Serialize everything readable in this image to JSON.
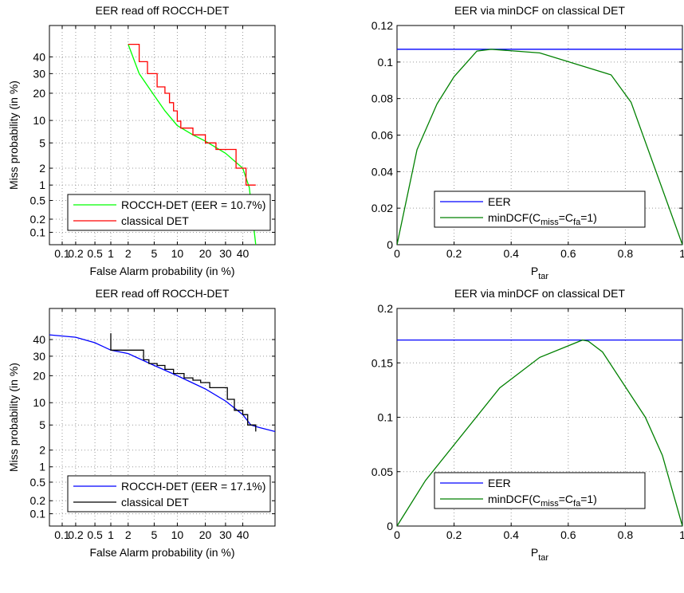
{
  "chart_data": [
    {
      "type": "line",
      "title": "EER read off ROCCH-DET",
      "xlabel": "False Alarm probability (in %)",
      "ylabel": "Miss probability (in %)",
      "scale": "probit",
      "xlim": [
        0.05,
        60
      ],
      "ylim": [
        0.05,
        60
      ],
      "grid": true,
      "legend_position": "bottom-left",
      "x_ticks": [
        "0.1",
        "0.2",
        "0.5",
        "1",
        "2",
        "5",
        "10",
        "20",
        "30",
        "40"
      ],
      "y_ticks": [
        "0.1",
        "0.2",
        "0.5",
        "1",
        "2",
        "5",
        "10",
        "20",
        "30",
        "40"
      ],
      "series": [
        {
          "name": "ROCCH-DET (EER = 10.7%)",
          "color": "#00ff00",
          "kind": "curve",
          "x": [
            2,
            3,
            5,
            7,
            10,
            15,
            20,
            30,
            40,
            44,
            48
          ],
          "y": [
            48,
            30,
            19,
            13,
            8.6,
            6.5,
            5.3,
            3.5,
            2.0,
            0.9,
            0.05
          ]
        },
        {
          "name": "classical DET",
          "color": "#ff0000",
          "kind": "step",
          "x": [
            2,
            3,
            3,
            4,
            4,
            5.5,
            5.5,
            7,
            7,
            8,
            8,
            9,
            9,
            10,
            10,
            11,
            11,
            15,
            15,
            20,
            20,
            25,
            25,
            36,
            36,
            42,
            42,
            48
          ],
          "y": [
            48,
            48,
            37,
            37,
            30,
            30,
            23,
            23,
            20,
            20,
            16,
            16,
            13,
            13,
            9.8,
            9.8,
            8.0,
            8.0,
            6.5,
            6.5,
            5.0,
            5.0,
            4.0,
            4.0,
            2.0,
            2.0,
            1.0,
            1.0
          ]
        }
      ]
    },
    {
      "type": "line",
      "title": "EER via minDCF on classical DET",
      "xlabel": "P",
      "xlabel_sub": "tar",
      "ylabel": "",
      "xlim": [
        0,
        1
      ],
      "ylim": [
        0,
        0.12
      ],
      "grid": true,
      "legend_position": "bottom-center",
      "x_ticks": [
        "0",
        "0.2",
        "0.4",
        "0.6",
        "0.8",
        "1"
      ],
      "y_ticks": [
        "0",
        "0.02",
        "0.04",
        "0.06",
        "0.08",
        "0.1",
        "0.12"
      ],
      "series": [
        {
          "name": "EER",
          "color": "#0000ff",
          "x": [
            0,
            1
          ],
          "y": [
            0.107,
            0.107
          ]
        },
        {
          "name": "minDCF(C",
          "name_sub1": "miss",
          "name_mid": "=C",
          "name_sub2": "fa",
          "name_end": "=1)",
          "color": "#008000",
          "x": [
            0,
            0.07,
            0.14,
            0.2,
            0.28,
            0.33,
            0.5,
            0.75,
            0.82,
            1.0
          ],
          "y": [
            0,
            0.052,
            0.077,
            0.092,
            0.106,
            0.107,
            0.105,
            0.093,
            0.078,
            0
          ]
        }
      ]
    },
    {
      "type": "line",
      "title": "EER read off ROCCH-DET",
      "xlabel": "False Alarm probability (in %)",
      "ylabel": "Miss probability (in %)",
      "scale": "probit",
      "xlim": [
        0.05,
        60
      ],
      "ylim": [
        0.05,
        60
      ],
      "grid": true,
      "legend_position": "bottom-left",
      "x_ticks": [
        "0.1",
        "0.2",
        "0.5",
        "1",
        "2",
        "5",
        "10",
        "20",
        "30",
        "40"
      ],
      "y_ticks": [
        "0.1",
        "0.2",
        "0.5",
        "1",
        "2",
        "5",
        "10",
        "20",
        "30",
        "40"
      ],
      "series": [
        {
          "name": "ROCCH-DET (EER = 17.1%)",
          "color": "#0000ff",
          "kind": "curve",
          "x": [
            0.05,
            0.2,
            0.5,
            1,
            2,
            5,
            10,
            20,
            30,
            40,
            45,
            50,
            60
          ],
          "y": [
            43,
            41.5,
            38,
            33.5,
            31.5,
            25,
            20,
            14.5,
            10.5,
            7,
            5,
            4.6,
            4.0
          ]
        },
        {
          "name": "classical DET",
          "color": "#000000",
          "kind": "step",
          "x": [
            1,
            1,
            3.5,
            3.5,
            4.2,
            4.2,
            5.5,
            5.5,
            7,
            7,
            9,
            9,
            12,
            12,
            15,
            15,
            18,
            18,
            22,
            22,
            31,
            31,
            35,
            35,
            40,
            40,
            43,
            43,
            48,
            48
          ],
          "y": [
            44,
            33.5,
            33.5,
            28,
            28,
            26,
            26,
            25,
            25,
            23,
            23,
            21,
            21,
            19,
            19,
            18,
            18,
            17,
            17,
            15,
            15,
            11,
            11,
            8,
            8,
            7,
            7,
            5,
            5,
            4
          ]
        }
      ]
    },
    {
      "type": "line",
      "title": "EER via minDCF on classical DET",
      "xlabel": "P",
      "xlabel_sub": "tar",
      "ylabel": "",
      "xlim": [
        0,
        1
      ],
      "ylim": [
        0,
        0.2
      ],
      "grid": true,
      "legend_position": "bottom-center",
      "x_ticks": [
        "0",
        "0.2",
        "0.4",
        "0.6",
        "0.8",
        "1"
      ],
      "y_ticks": [
        "0",
        "0.05",
        "0.1",
        "0.15",
        "0.2"
      ],
      "series": [
        {
          "name": "EER",
          "color": "#0000ff",
          "x": [
            0,
            1
          ],
          "y": [
            0.171,
            0.171
          ]
        },
        {
          "name": "minDCF(C",
          "name_sub1": "miss",
          "name_mid": "=C",
          "name_sub2": "fa",
          "name_end": "=1)",
          "color": "#008000",
          "x": [
            0,
            0.1,
            0.36,
            0.5,
            0.65,
            0.67,
            0.72,
            0.87,
            0.93,
            1.0
          ],
          "y": [
            0,
            0.042,
            0.127,
            0.155,
            0.171,
            0.17,
            0.16,
            0.1,
            0.065,
            0
          ]
        }
      ]
    }
  ]
}
